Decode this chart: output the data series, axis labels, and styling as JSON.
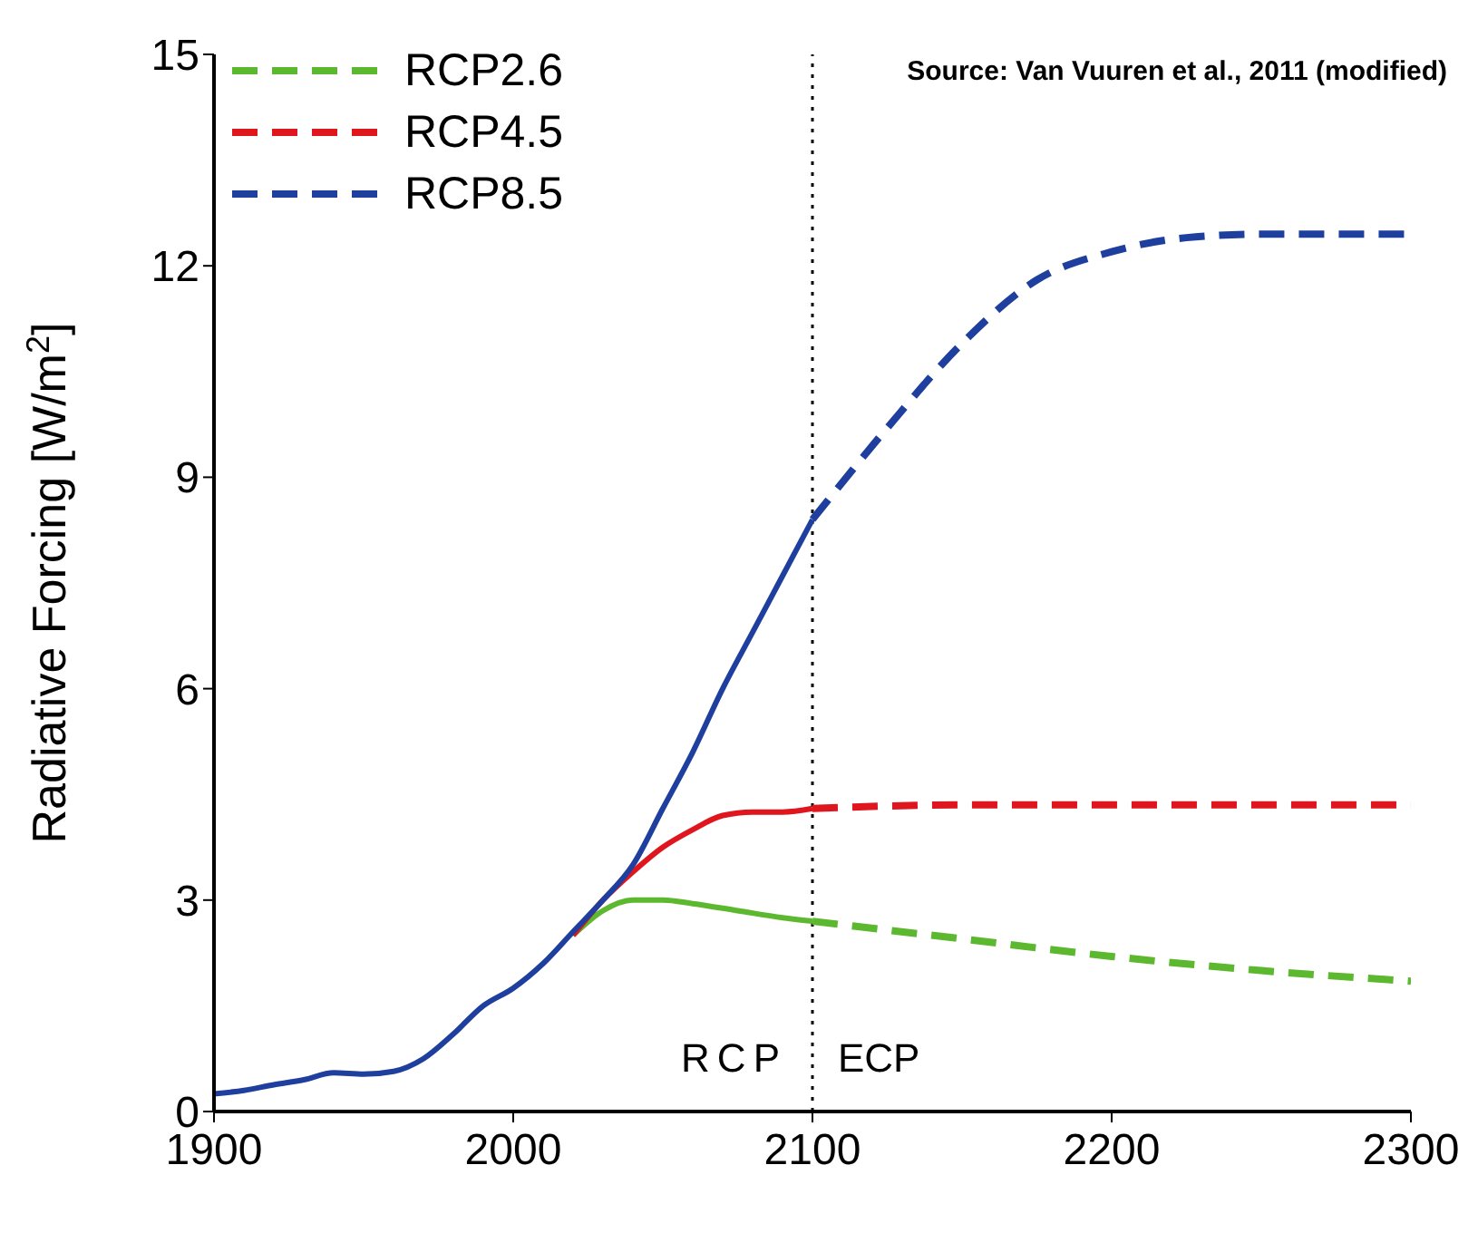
{
  "chart_data": {
    "type": "line",
    "ylabel": "Radiative Forcing [W/m$^{2}$]",
    "xlim": [
      1900,
      2300
    ],
    "xticks": [
      1900,
      2000,
      2100,
      2200,
      2300
    ],
    "ylim": [
      0,
      15
    ],
    "yticks": [
      0,
      3,
      6,
      9,
      12,
      15
    ],
    "grid": false,
    "legend": "top left",
    "marker": "none",
    "annotations": [
      "Source: Van Vuuren et al., 2011 (modified)",
      "RCP",
      "ECP"
    ],
    "ref_lines": [
      {
        "axis": "x",
        "value": 2100,
        "color": "#000000",
        "line_style": "dotted"
      }
    ],
    "series": [
      {
        "name": "RCP2.6",
        "color": "#5cb82e",
        "line_style": "dashed",
        "x": [
          2100,
          2150,
          2200,
          2250,
          2300
        ],
        "values": [
          2.7,
          2.45,
          2.2,
          2.0,
          1.85
        ]
      },
      {
        "name": "RCP4.5",
        "color": "#e0161f",
        "line_style": "dashed",
        "x": [
          2100,
          2150,
          2200,
          2250,
          2300
        ],
        "values": [
          4.3,
          4.35,
          4.35,
          4.35,
          4.35
        ]
      },
      {
        "name": "RCP8.5",
        "color": "#1f3f9f",
        "line_style": "dashed",
        "x": [
          2100,
          2125,
          2150,
          2175,
          2200,
          2225,
          2250,
          2275,
          2300
        ],
        "values": [
          8.4,
          9.7,
          10.9,
          11.8,
          12.2,
          12.4,
          12.45,
          12.45,
          12.45
        ]
      },
      {
        "color": "#5cb82e",
        "line_style": "solid",
        "x": [
          2020,
          2030,
          2040,
          2050,
          2060,
          2075,
          2090,
          2100
        ],
        "values": [
          2.5,
          2.85,
          3.0,
          3.0,
          2.95,
          2.85,
          2.75,
          2.7
        ]
      },
      {
        "color": "#e0161f",
        "line_style": "solid",
        "x": [
          2020,
          2030,
          2040,
          2050,
          2060,
          2070,
          2080,
          2090,
          2100
        ],
        "values": [
          2.5,
          3.0,
          3.4,
          3.75,
          4.0,
          4.2,
          4.25,
          4.25,
          4.3
        ]
      },
      {
        "color": "#1f3f9f",
        "line_style": "solid",
        "x": [
          1900,
          1910,
          1920,
          1930,
          1940,
          1950,
          1960,
          1970,
          1980,
          1990,
          2000,
          2010,
          2020,
          2030,
          2040,
          2050,
          2060,
          2070,
          2080,
          2090,
          2100
        ],
        "values": [
          0.25,
          0.3,
          0.38,
          0.45,
          0.55,
          0.53,
          0.57,
          0.75,
          1.1,
          1.5,
          1.75,
          2.1,
          2.55,
          3.0,
          3.5,
          4.3,
          5.1,
          6.0,
          6.8,
          7.6,
          8.4
        ]
      }
    ]
  }
}
